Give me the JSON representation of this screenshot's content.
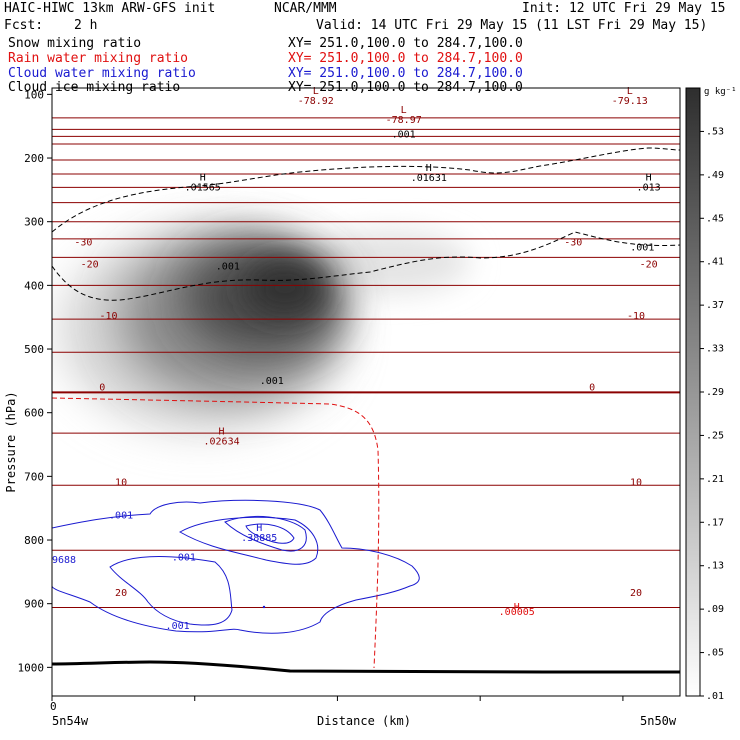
{
  "header": {
    "model": "HAIC-HIWC 13km ARW-GFS init",
    "org": "NCAR/MMM",
    "init": "Init: 12 UTC Fri 29 May 15",
    "fcst_label": "Fcst:",
    "fcst_value": "2 h",
    "valid": "Valid: 14 UTC Fri 29 May 15 (11 LST Fri 29 May 15)"
  },
  "fields": [
    {
      "name": "Snow mixing ratio",
      "xy": "XY= 251.0,100.0 to 284.7,100.0",
      "color": "#000000"
    },
    {
      "name": "Rain water mixing ratio",
      "xy": "XY= 251.0,100.0 to 284.7,100.0",
      "color": "#e01010"
    },
    {
      "name": "Cloud water mixing ratio",
      "xy": "XY= 251.0,100.0 to 284.7,100.0",
      "color": "#1a1ad0"
    },
    {
      "name": "Cloud ice mixing ratio",
      "xy": "XY= 251.0,100.0 to 284.7,100.0",
      "color": "#000000"
    }
  ],
  "colors": {
    "temperature": "#8b0000",
    "rain": "#e01010",
    "cloud_water": "#1a1ad0",
    "ice": "#000000",
    "terrain": "#000000"
  },
  "chart_data": {
    "type": "cross-section contour",
    "xlabel": "Distance (km)",
    "ylabel": "Pressure (hPa)",
    "x_zero_label": "0",
    "x_left_label": "5n54w",
    "x_right_label": "5n50w",
    "ylim": [
      1045,
      90
    ],
    "y_ticks": [
      100,
      200,
      300,
      400,
      500,
      600,
      700,
      800,
      900,
      1000
    ],
    "colorbar": {
      "unit": "g kg⁻¹",
      "ticks": [
        ".53",
        ".49",
        ".45",
        ".41",
        ".37",
        ".33",
        ".29",
        ".25",
        ".21",
        ".17",
        ".13",
        ".09",
        ".05",
        ".01"
      ],
      "range": [
        0.01,
        0.57
      ]
    },
    "temperature_isotherm_labels": [
      {
        "value": "-30",
        "p": 337,
        "d": 0.05
      },
      {
        "value": "-30",
        "p": 337,
        "d": 0.83
      },
      {
        "value": "-20",
        "p": 372,
        "d": 0.06
      },
      {
        "value": "-20",
        "p": 372,
        "d": 0.95
      },
      {
        "value": "-10",
        "p": 453,
        "d": 0.09
      },
      {
        "value": "-10",
        "p": 453,
        "d": 0.93
      },
      {
        "value": "0",
        "p": 565,
        "d": 0.08
      },
      {
        "value": "0",
        "p": 565,
        "d": 0.86
      },
      {
        "value": "10",
        "p": 714,
        "d": 0.11
      },
      {
        "value": "10",
        "p": 714,
        "d": 0.93
      },
      {
        "value": "20",
        "p": 888,
        "d": 0.11
      },
      {
        "value": "20",
        "p": 888,
        "d": 0.93
      }
    ],
    "temperature_extrema": [
      {
        "kind": "L",
        "value": "-78.92",
        "p": 90,
        "d": 0.42
      },
      {
        "kind": "L",
        "value": "-78.97",
        "p": 120,
        "d": 0.56
      },
      {
        "kind": "L",
        "value": "-79.13",
        "p": 90,
        "d": 0.92
      },
      {
        "kind": "H",
        "value": ".02634",
        "p": 625,
        "d": 0.27
      }
    ],
    "ice_contour": {
      "level": ".001",
      "label_positions": [
        {
          "p": 168,
          "d": 0.56
        },
        {
          "p": 375,
          "d": 0.28
        }
      ]
    },
    "ice_extrema": [
      {
        "kind": "H",
        "value": ".01565",
        "p": 235,
        "d": 0.24
      },
      {
        "kind": "H",
        "value": ".01631",
        "p": 220,
        "d": 0.6
      },
      {
        "kind": "H",
        "value": ".013",
        "p": 235,
        "d": 0.95
      }
    ],
    "snow_contour": {
      "level": ".001",
      "label_positions": [
        {
          "p": 555,
          "d": 0.35
        },
        {
          "p": 345,
          "d": 0.94
        }
      ]
    },
    "cloud_water_contour": {
      "level": ".001",
      "label_positions": [
        {
          "p": 766,
          "d": 0.11
        },
        {
          "p": 832,
          "d": 0.21
        },
        {
          "p": 940,
          "d": 0.2
        }
      ]
    },
    "cloud_water_extrema": [
      {
        "kind": "H",
        "value": ".38885",
        "p": 786,
        "d": 0.33
      },
      {
        "value": "9688",
        "p": 836,
        "d": 0.0
      }
    ],
    "rain_extrema": [
      {
        "kind": "H",
        "value": ".00005",
        "p": 918,
        "d": 0.74
      }
    ],
    "rain_contour": {
      "level": ".001"
    },
    "grid": false,
    "legend": "none"
  }
}
